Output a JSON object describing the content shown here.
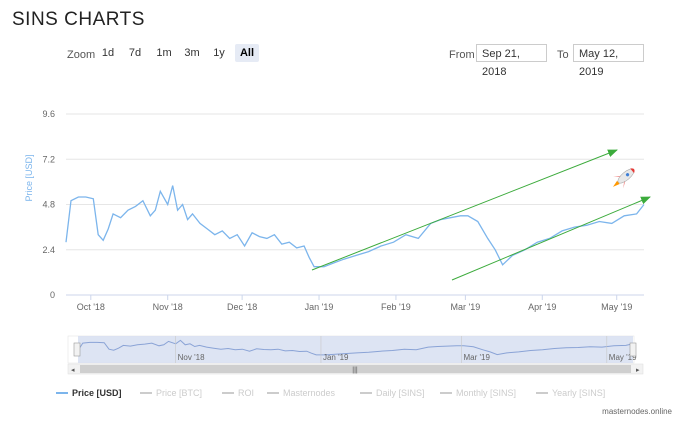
{
  "header": {
    "title": "SINS CHARTS"
  },
  "zoom": {
    "label": "Zoom",
    "buttons": [
      {
        "label": "1d",
        "active": false
      },
      {
        "label": "7d",
        "active": false
      },
      {
        "label": "1m",
        "active": false
      },
      {
        "label": "3m",
        "active": false
      },
      {
        "label": "1y",
        "active": false
      },
      {
        "label": "All",
        "active": true
      }
    ]
  },
  "range": {
    "from_label": "From",
    "from_value": "Sep 21, 2018",
    "to_label": "To",
    "to_value": "May 12, 2019"
  },
  "credit": "masternodes.online",
  "colors": {
    "line": "#7cb5ec",
    "arrow": "#3cab3c",
    "navigator_fill": "#d5ddf0"
  },
  "chart_data": {
    "type": "line",
    "ylabel": "Price [USD]",
    "xlim": [
      "2018-09-21",
      "2019-05-12"
    ],
    "ylim": [
      0,
      9.6
    ],
    "yticks": [
      "0",
      "2.4",
      "4.8",
      "7.2",
      "9.6"
    ],
    "xticks": [
      {
        "label": "Oct '18",
        "date": "2018-10-01"
      },
      {
        "label": "Nov '18",
        "date": "2018-11-01"
      },
      {
        "label": "Dec '18",
        "date": "2018-12-01"
      },
      {
        "label": "Jan '19",
        "date": "2019-01-01"
      },
      {
        "label": "Feb '19",
        "date": "2019-02-01"
      },
      {
        "label": "Mar '19",
        "date": "2019-03-01"
      },
      {
        "label": "Apr '19",
        "date": "2019-04-01"
      },
      {
        "label": "May '19",
        "date": "2019-05-01"
      }
    ],
    "series": [
      {
        "name": "Price [USD]",
        "x": [
          "2018-09-21",
          "2018-09-23",
          "2018-09-26",
          "2018-09-29",
          "2018-10-02",
          "2018-10-04",
          "2018-10-06",
          "2018-10-08",
          "2018-10-10",
          "2018-10-13",
          "2018-10-16",
          "2018-10-19",
          "2018-10-22",
          "2018-10-25",
          "2018-10-27",
          "2018-10-29",
          "2018-11-01",
          "2018-11-03",
          "2018-11-05",
          "2018-11-07",
          "2018-11-09",
          "2018-11-11",
          "2018-11-14",
          "2018-11-17",
          "2018-11-20",
          "2018-11-23",
          "2018-11-26",
          "2018-11-29",
          "2018-12-02",
          "2018-12-05",
          "2018-12-08",
          "2018-12-11",
          "2018-12-14",
          "2018-12-17",
          "2018-12-20",
          "2018-12-23",
          "2018-12-26",
          "2018-12-28",
          "2018-12-30",
          "2019-01-03",
          "2019-01-07",
          "2019-01-11",
          "2019-01-16",
          "2019-01-21",
          "2019-01-26",
          "2019-01-31",
          "2019-02-05",
          "2019-02-10",
          "2019-02-15",
          "2019-02-19",
          "2019-02-23",
          "2019-02-27",
          "2019-03-02",
          "2019-03-06",
          "2019-03-10",
          "2019-03-13",
          "2019-03-16",
          "2019-03-20",
          "2019-03-25",
          "2019-03-30",
          "2019-04-04",
          "2019-04-09",
          "2019-04-14",
          "2019-04-19",
          "2019-04-24",
          "2019-04-29",
          "2019-05-04",
          "2019-05-09",
          "2019-05-12"
        ],
        "values": [
          2.8,
          5.0,
          5.2,
          5.2,
          5.1,
          3.2,
          2.9,
          3.5,
          4.3,
          4.1,
          4.5,
          4.7,
          5.0,
          4.2,
          4.5,
          5.5,
          4.8,
          5.8,
          4.5,
          4.8,
          4.0,
          4.3,
          3.8,
          3.5,
          3.2,
          3.4,
          3.0,
          3.2,
          2.6,
          3.3,
          3.1,
          3.0,
          3.2,
          2.7,
          2.8,
          2.5,
          2.6,
          2.0,
          1.5,
          1.5,
          1.7,
          1.9,
          2.1,
          2.3,
          2.6,
          2.8,
          3.2,
          3.0,
          3.8,
          4.0,
          4.1,
          4.2,
          4.2,
          3.9,
          3.0,
          2.4,
          1.6,
          2.1,
          2.4,
          2.8,
          3.0,
          3.4,
          3.6,
          3.7,
          3.9,
          3.8,
          4.2,
          4.3,
          4.8
        ]
      }
    ],
    "annotations": [
      "upper-trend-arrow",
      "lower-trend-arrow",
      "rocket-emoji"
    ],
    "navigator_ticks": [
      "Nov '18",
      "Jan '19",
      "Mar '19",
      "May '19"
    ],
    "legend": {
      "placement": "bottom-left",
      "items": [
        {
          "label": "Price [USD]",
          "active": true
        },
        {
          "label": "Price [BTC]",
          "active": false
        },
        {
          "label": "ROI",
          "active": false
        },
        {
          "label": "Masternodes",
          "active": false
        },
        {
          "label": "Daily [SINS]",
          "active": false
        },
        {
          "label": "Monthly [SINS]",
          "active": false
        },
        {
          "label": "Yearly [SINS]",
          "active": false
        }
      ]
    }
  }
}
